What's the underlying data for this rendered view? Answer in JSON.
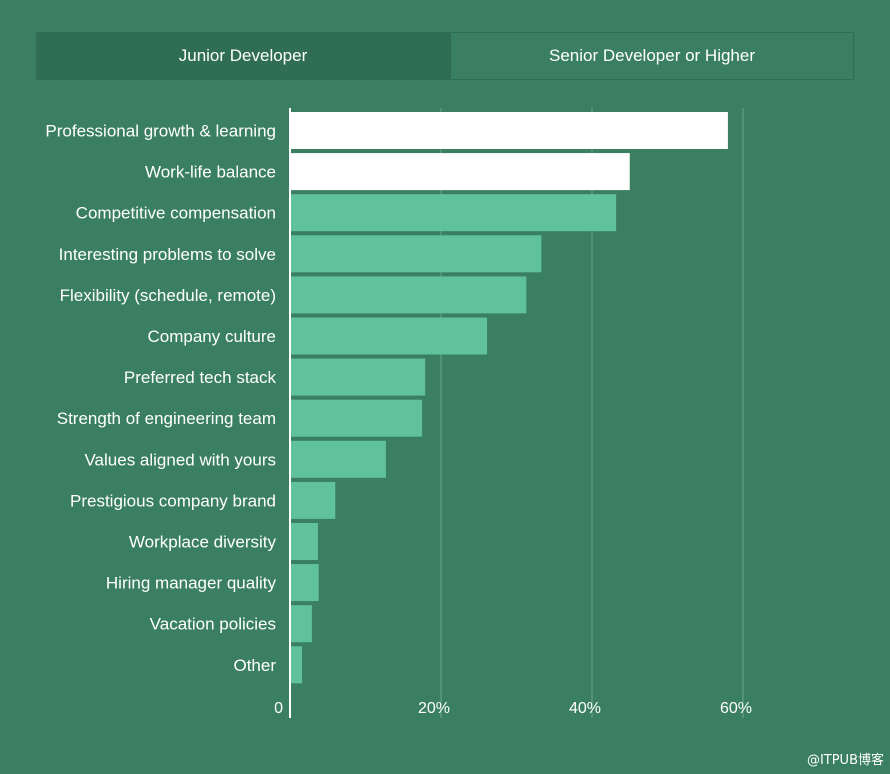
{
  "tabs": [
    {
      "label": "Junior Developer",
      "active": false
    },
    {
      "label": "Senior Developer or Higher",
      "active": true
    }
  ],
  "watermark": "@ITPUB博客",
  "colors": {
    "background": "#3a7f62",
    "tab_bar": "#2f6e54",
    "bar_highlight": "#ffffff",
    "bar_default": "#5fc29d",
    "gridline": "#6aa58b"
  },
  "chart_data": {
    "type": "bar",
    "orientation": "horizontal",
    "categories": [
      "Professional growth & learning",
      "Work-life balance",
      "Competitive compensation",
      "Interesting problems to solve",
      "Flexibility (schedule, remote)",
      "Company culture",
      "Preferred tech stack",
      "Strength of engineering team",
      "Values aligned with yours",
      "Prestigious company brand",
      "Workplace diversity",
      "Hiring manager quality",
      "Vacation policies",
      "Other"
    ],
    "values": [
      58,
      45,
      43.2,
      33.3,
      31.3,
      26.1,
      17.9,
      17.5,
      12.7,
      6.0,
      3.7,
      3.8,
      2.9,
      1.6
    ],
    "highlighted": [
      true,
      true,
      false,
      false,
      false,
      false,
      false,
      false,
      false,
      false,
      false,
      false,
      false,
      false
    ],
    "xlim": [
      0,
      60
    ],
    "xticks": [
      0,
      20,
      40,
      60
    ],
    "xtick_labels": [
      "0",
      "20%",
      "40%",
      "60%"
    ],
    "grid": true
  }
}
